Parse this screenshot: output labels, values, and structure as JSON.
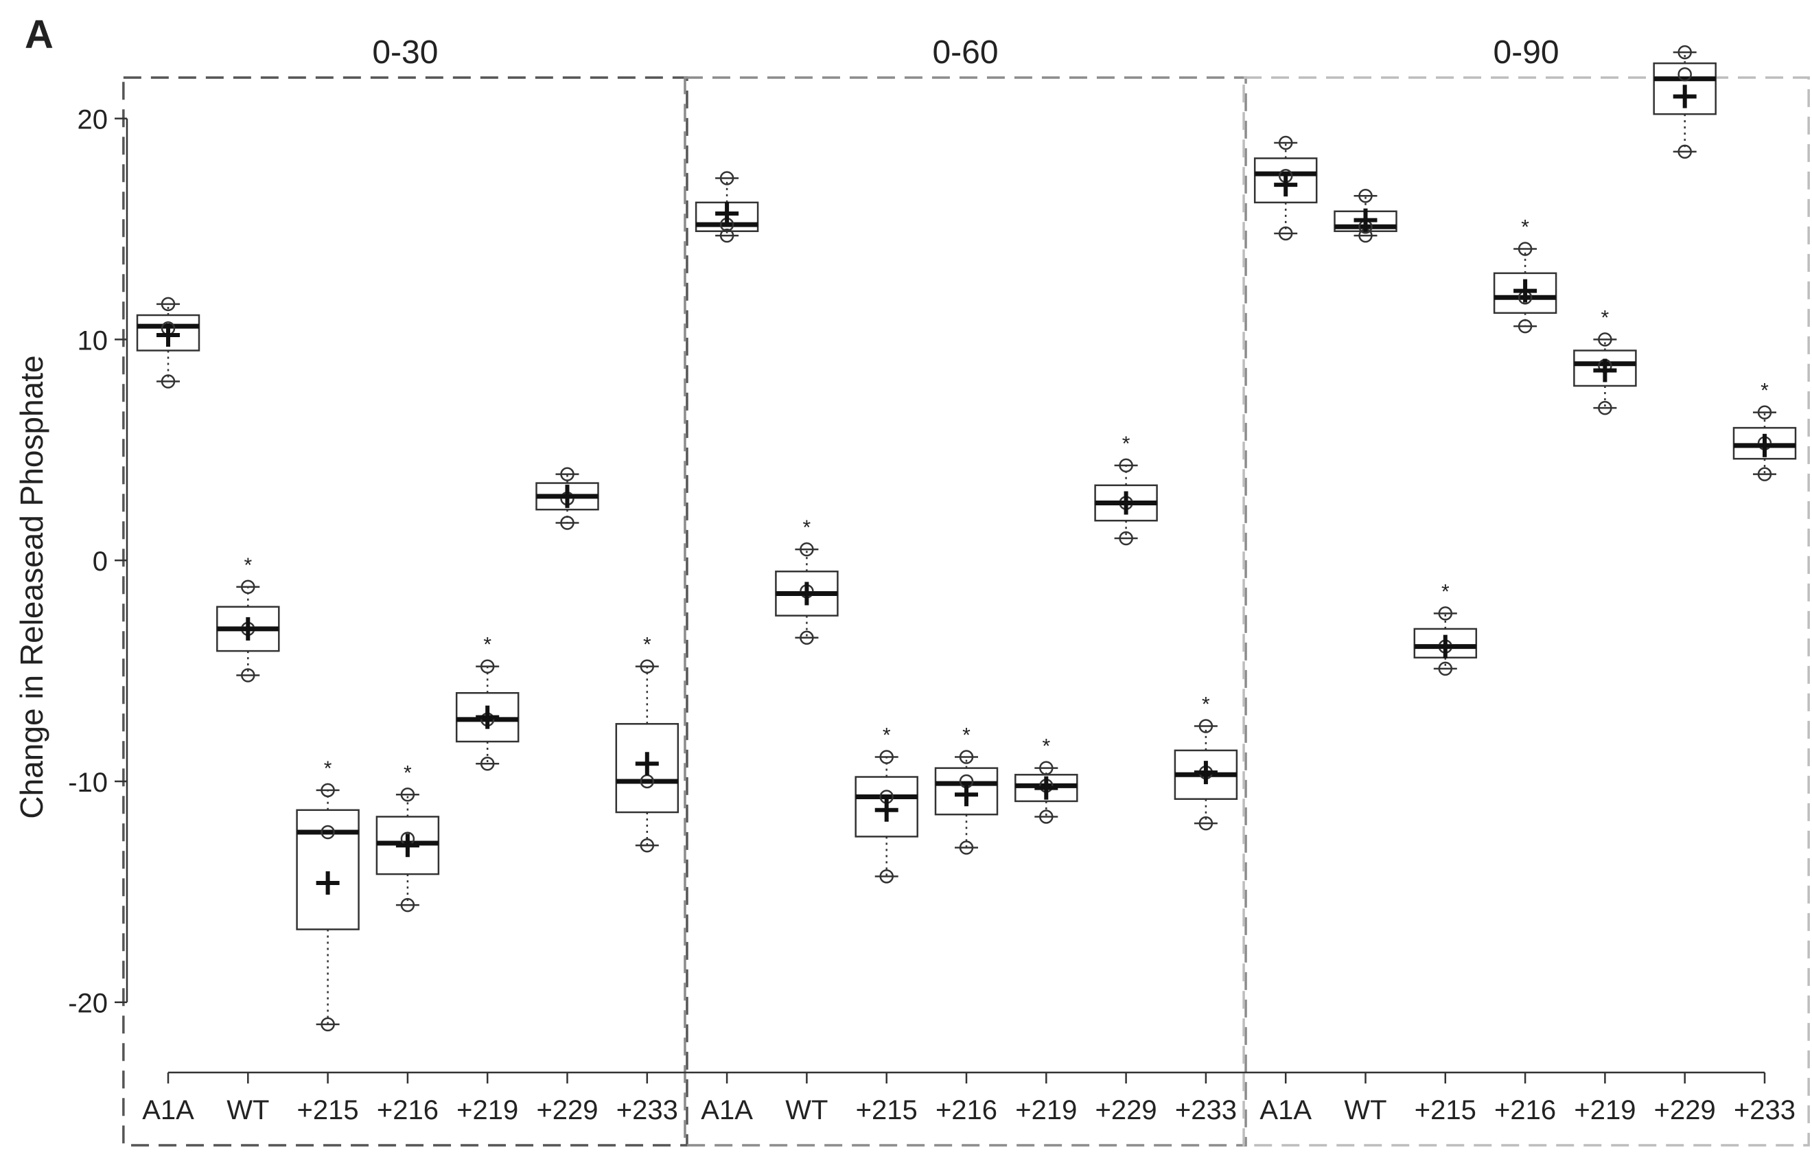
{
  "panel_label": "A",
  "chart_data": {
    "type": "box",
    "ylabel": "Change in Releasead Phosphate",
    "ylim": [
      -21.5,
      23.5
    ],
    "yticks": [
      -20,
      -10,
      0,
      10,
      20
    ],
    "ytick_labels": [
      "-20",
      "-10",
      "0",
      "10",
      "20"
    ],
    "categories": [
      "A1A",
      "WT",
      "+215",
      "+216",
      "+219",
      "+229",
      "+233"
    ],
    "significance_marker": "*",
    "marker_legend": {
      "mean": "+",
      "points": "o"
    },
    "groups": [
      {
        "title": "0-30",
        "frame_color": "#555555",
        "boxes": [
          {
            "category": "A1A",
            "q1": 9.5,
            "median": 10.6,
            "q3": 11.1,
            "mean": 10.2,
            "points": [
              11.6,
              10.5,
              8.1
            ],
            "sig": false
          },
          {
            "category": "WT",
            "q1": -4.1,
            "median": -3.1,
            "q3": -2.1,
            "mean": -3.1,
            "points": [
              -1.2,
              -3.1,
              -5.2
            ],
            "sig": true
          },
          {
            "category": "+215",
            "q1": -16.7,
            "median": -12.3,
            "q3": -11.3,
            "mean": -14.6,
            "points": [
              -10.4,
              -12.3,
              -21.0
            ],
            "sig": true
          },
          {
            "category": "+216",
            "q1": -14.2,
            "median": -12.8,
            "q3": -11.6,
            "mean": -12.9,
            "points": [
              -10.6,
              -12.6,
              -15.6
            ],
            "sig": true
          },
          {
            "category": "+219",
            "q1": -8.2,
            "median": -7.2,
            "q3": -6.0,
            "mean": -7.1,
            "points": [
              -4.8,
              -7.2,
              -9.2
            ],
            "sig": true
          },
          {
            "category": "+229",
            "q1": 2.3,
            "median": 2.9,
            "q3": 3.5,
            "mean": 2.9,
            "points": [
              3.9,
              2.8,
              1.7
            ],
            "sig": false
          },
          {
            "category": "+233",
            "q1": -11.4,
            "median": -10.0,
            "q3": -7.4,
            "mean": -9.2,
            "points": [
              -4.8,
              -10.0,
              -12.9
            ],
            "sig": true
          }
        ]
      },
      {
        "title": "0-60",
        "frame_color": "#8c8c8c",
        "boxes": [
          {
            "category": "A1A",
            "q1": 14.9,
            "median": 15.2,
            "q3": 16.2,
            "mean": 15.7,
            "points": [
              17.3,
              15.2,
              14.7
            ],
            "sig": false
          },
          {
            "category": "WT",
            "q1": -2.5,
            "median": -1.5,
            "q3": -0.5,
            "mean": -1.5,
            "points": [
              0.5,
              -1.4,
              -3.5
            ],
            "sig": true
          },
          {
            "category": "+215",
            "q1": -12.5,
            "median": -10.7,
            "q3": -9.8,
            "mean": -11.3,
            "points": [
              -8.9,
              -10.7,
              -14.3
            ],
            "sig": true
          },
          {
            "category": "+216",
            "q1": -11.5,
            "median": -10.1,
            "q3": -9.4,
            "mean": -10.6,
            "points": [
              -8.9,
              -10.0,
              -13.0
            ],
            "sig": true
          },
          {
            "category": "+219",
            "q1": -10.9,
            "median": -10.2,
            "q3": -9.7,
            "mean": -10.3,
            "points": [
              -9.4,
              -10.2,
              -11.6
            ],
            "sig": true
          },
          {
            "category": "+229",
            "q1": 1.8,
            "median": 2.6,
            "q3": 3.4,
            "mean": 2.6,
            "points": [
              4.3,
              2.6,
              1.0
            ],
            "sig": true
          },
          {
            "category": "+233",
            "q1": -10.8,
            "median": -9.7,
            "q3": -8.6,
            "mean": -9.6,
            "points": [
              -7.5,
              -9.6,
              -11.9
            ],
            "sig": true
          }
        ]
      },
      {
        "title": "0-90",
        "frame_color": "#bdbdbd",
        "boxes": [
          {
            "category": "A1A",
            "q1": 16.2,
            "median": 17.5,
            "q3": 18.2,
            "mean": 17.0,
            "points": [
              18.9,
              17.4,
              14.8
            ],
            "sig": false
          },
          {
            "category": "WT",
            "q1": 14.9,
            "median": 15.1,
            "q3": 15.8,
            "mean": 15.4,
            "points": [
              16.5,
              15.1,
              14.7
            ],
            "sig": false
          },
          {
            "category": "+215",
            "q1": -4.4,
            "median": -3.9,
            "q3": -3.1,
            "mean": -3.9,
            "points": [
              -2.4,
              -3.9,
              -4.9
            ],
            "sig": true
          },
          {
            "category": "+216",
            "q1": 11.2,
            "median": 11.9,
            "q3": 13.0,
            "mean": 12.2,
            "points": [
              14.1,
              11.9,
              10.6
            ],
            "sig": true
          },
          {
            "category": "+219",
            "q1": 7.9,
            "median": 8.9,
            "q3": 9.5,
            "mean": 8.6,
            "points": [
              10.0,
              8.8,
              6.9
            ],
            "sig": true
          },
          {
            "category": "+229",
            "q1": 20.2,
            "median": 21.8,
            "q3": 22.5,
            "mean": 21.0,
            "points": [
              23.0,
              22.0,
              18.5
            ],
            "sig": false
          },
          {
            "category": "+233",
            "q1": 4.6,
            "median": 5.2,
            "q3": 6.0,
            "mean": 5.2,
            "points": [
              6.7,
              5.3,
              3.9
            ],
            "sig": true
          }
        ]
      }
    ]
  }
}
